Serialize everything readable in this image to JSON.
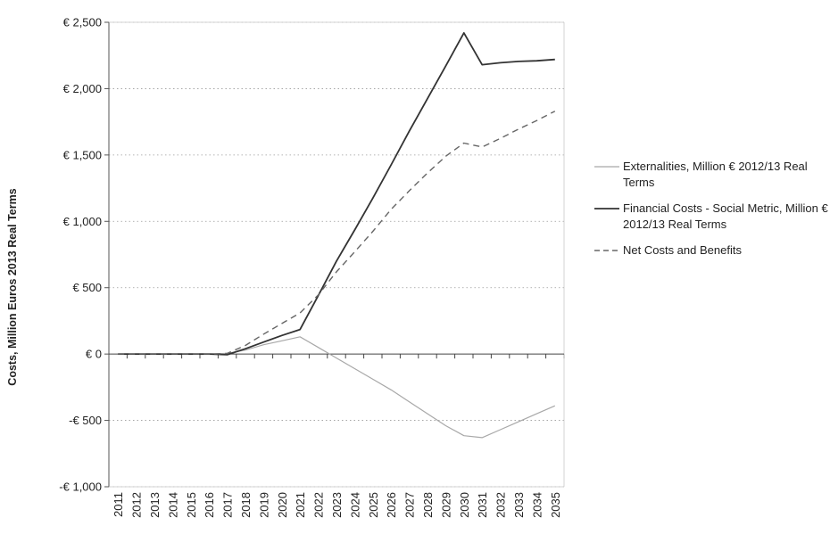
{
  "chart_data": {
    "type": "line",
    "ylabel": "Costs, Million Euros 2013 Real Terms",
    "xlabel": "",
    "x": [
      "2011",
      "2012",
      "2013",
      "2014",
      "2015",
      "2016",
      "2017",
      "2018",
      "2019",
      "2020",
      "2021",
      "2022",
      "2023",
      "2024",
      "2025",
      "2026",
      "2027",
      "2028",
      "2029",
      "2030",
      "2031",
      "2032",
      "2033",
      "2034",
      "2035"
    ],
    "ylim": [
      -1000,
      2500
    ],
    "yticks": [
      2500,
      2000,
      1500,
      1000,
      500,
      0,
      -500,
      -1000
    ],
    "ytick_labels": [
      "€ 2,500",
      "€ 2,000",
      "€ 1,500",
      "€ 1,000",
      "€ 500",
      "€ 0",
      "-€ 500",
      "-€ 1,000"
    ],
    "grid": "horizontal dotted",
    "legend_position": "right",
    "series": [
      {
        "name": "Externalities, Million € 2012/13 Real Terms",
        "style": "solid",
        "color": "#a8a8a8",
        "values": [
          0,
          0,
          0,
          0,
          0,
          0,
          5,
          30,
          70,
          100,
          130,
          50,
          -30,
          -110,
          -190,
          -270,
          -360,
          -450,
          -540,
          -615,
          -630,
          -570,
          -510,
          -450,
          -390
        ]
      },
      {
        "name": "Financial Costs - Social Metric, Million € 2012/13 Real Terms",
        "style": "solid",
        "color": "#333333",
        "values": [
          0,
          0,
          0,
          0,
          0,
          0,
          -5,
          40,
          90,
          140,
          185,
          440,
          700,
          935,
          1175,
          1425,
          1680,
          1925,
          2170,
          2420,
          2180,
          2195,
          2205,
          2210,
          2220
        ]
      },
      {
        "name": "Net Costs and Benefits",
        "style": "dashed",
        "color": "#666666",
        "values": [
          0,
          0,
          0,
          0,
          0,
          0,
          5,
          65,
          150,
          230,
          310,
          445,
          620,
          770,
          925,
          1090,
          1230,
          1365,
          1490,
          1590,
          1560,
          1625,
          1695,
          1760,
          1830
        ]
      }
    ]
  }
}
